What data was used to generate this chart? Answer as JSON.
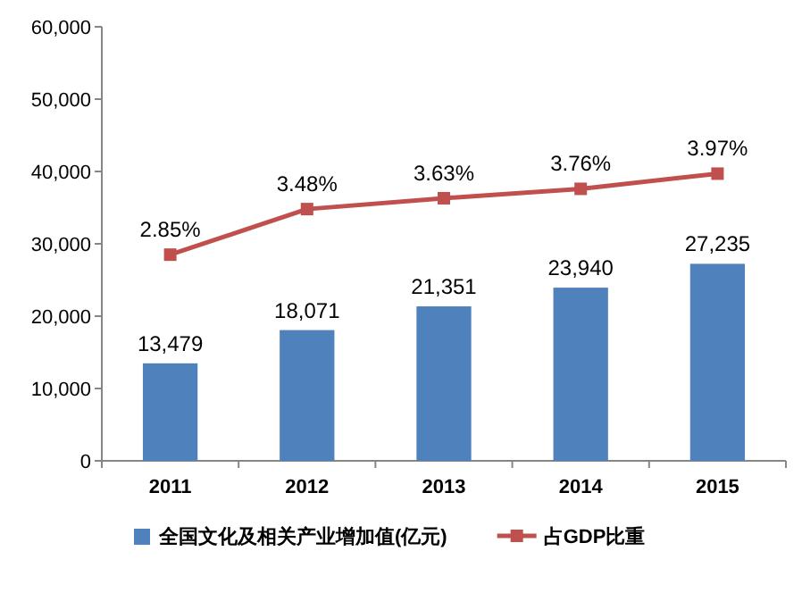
{
  "chart_data": {
    "type": "bar",
    "categories": [
      "2011",
      "2012",
      "2013",
      "2014",
      "2015"
    ],
    "series": [
      {
        "name": "全国文化及相关产业增加值(亿元)",
        "color": "#4f81bd",
        "values": [
          13479,
          18071,
          21351,
          23940,
          27235
        ],
        "value_labels": [
          "13,479",
          "18,071",
          "21,351",
          "23,940",
          "27,235"
        ]
      },
      {
        "name": "占GDP比重",
        "type": "line",
        "axis": "y2",
        "color": "#c0504d",
        "marker": "square",
        "line_style": "solid",
        "values": [
          2.85,
          3.48,
          3.63,
          3.76,
          3.97
        ],
        "value_labels": [
          "2.85%",
          "3.48%",
          "3.63%",
          "3.76%",
          "3.97%"
        ]
      }
    ],
    "ylim": [
      0,
      60000
    ],
    "yticks": [
      {
        "value": 0,
        "label": "0"
      },
      {
        "value": 10000,
        "label": "10,000"
      },
      {
        "value": 20000,
        "label": "20,000"
      },
      {
        "value": 30000,
        "label": "30,000"
      },
      {
        "value": 40000,
        "label": "40,000"
      },
      {
        "value": 50000,
        "label": "50,000"
      },
      {
        "value": 60000,
        "label": "60,000"
      }
    ],
    "y2lim": [
      0,
      6
    ],
    "grid": false,
    "legend": "bottom"
  }
}
